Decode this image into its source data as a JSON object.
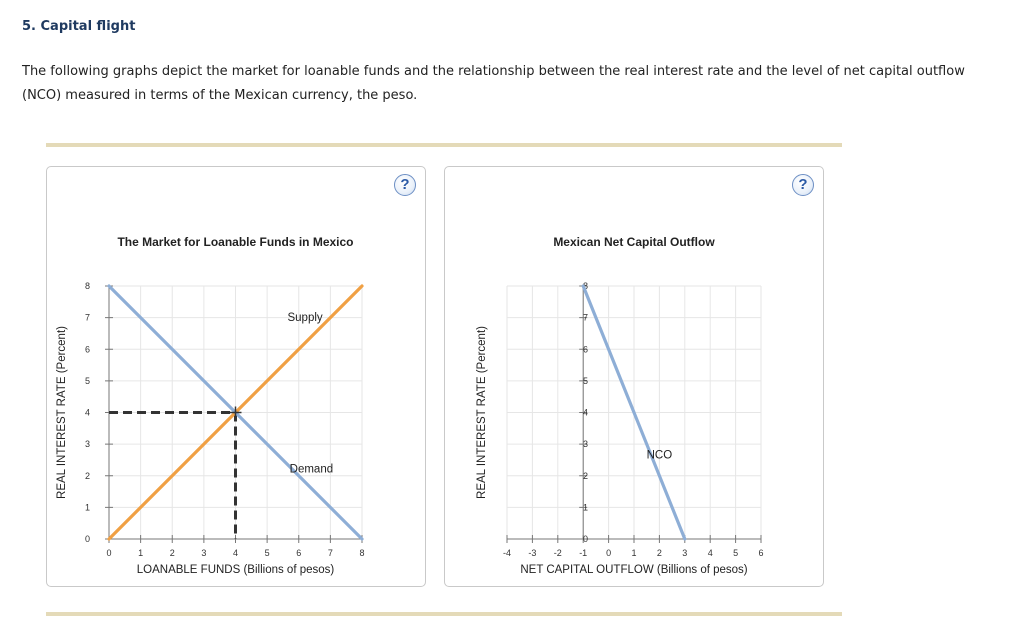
{
  "page": {
    "heading": "5. Capital flight",
    "intro": "The following graphs depict the market for loanable funds and the relationship between the real interest rate and the level of net capital outflow (NCO) measured in terms of the Mexican currency, the peso.",
    "help_glyph": "?"
  },
  "chart_data": [
    {
      "type": "line",
      "title": "The Market for Loanable Funds in Mexico",
      "xlabel": "LOANABLE FUNDS (Billions of pesos)",
      "ylabel": "REAL INTEREST RATE (Percent)",
      "xlim": [
        0,
        8
      ],
      "ylim": [
        0,
        8
      ],
      "xticks": [
        0,
        1,
        2,
        3,
        4,
        5,
        6,
        7,
        8
      ],
      "yticks": [
        0,
        1,
        2,
        3,
        4,
        5,
        6,
        7,
        8
      ],
      "grid": true,
      "series": [
        {
          "name": "Supply",
          "color": "#f0a044",
          "points": [
            [
              0,
              0
            ],
            [
              8,
              8
            ]
          ],
          "label_at": [
            6.2,
            6.9
          ]
        },
        {
          "name": "Demand",
          "color": "#8eaed6",
          "points": [
            [
              0,
              8
            ],
            [
              8,
              0
            ]
          ],
          "label_at": [
            6.4,
            2.1
          ]
        }
      ],
      "equilibrium": {
        "x": 4,
        "y": 4,
        "guide_color": "#333333"
      }
    },
    {
      "type": "line",
      "title": "Mexican Net Capital Outflow",
      "xlabel": "NET CAPITAL OUTFLOW (Billions of pesos)",
      "ylabel": "REAL INTEREST RATE (Percent)",
      "xlim": [
        -4,
        6
      ],
      "ylim": [
        0,
        8
      ],
      "xticks": [
        -4,
        -3,
        -2,
        -1,
        0,
        1,
        2,
        3,
        4,
        5,
        6
      ],
      "yticks": [
        0,
        1,
        2,
        3,
        4,
        5,
        6,
        7,
        8
      ],
      "grid": true,
      "series": [
        {
          "name": "NCO",
          "color": "#8eaed6",
          "points": [
            [
              -1,
              8
            ],
            [
              3,
              0
            ]
          ],
          "label_at": [
            2.0,
            2.55
          ]
        }
      ]
    }
  ]
}
